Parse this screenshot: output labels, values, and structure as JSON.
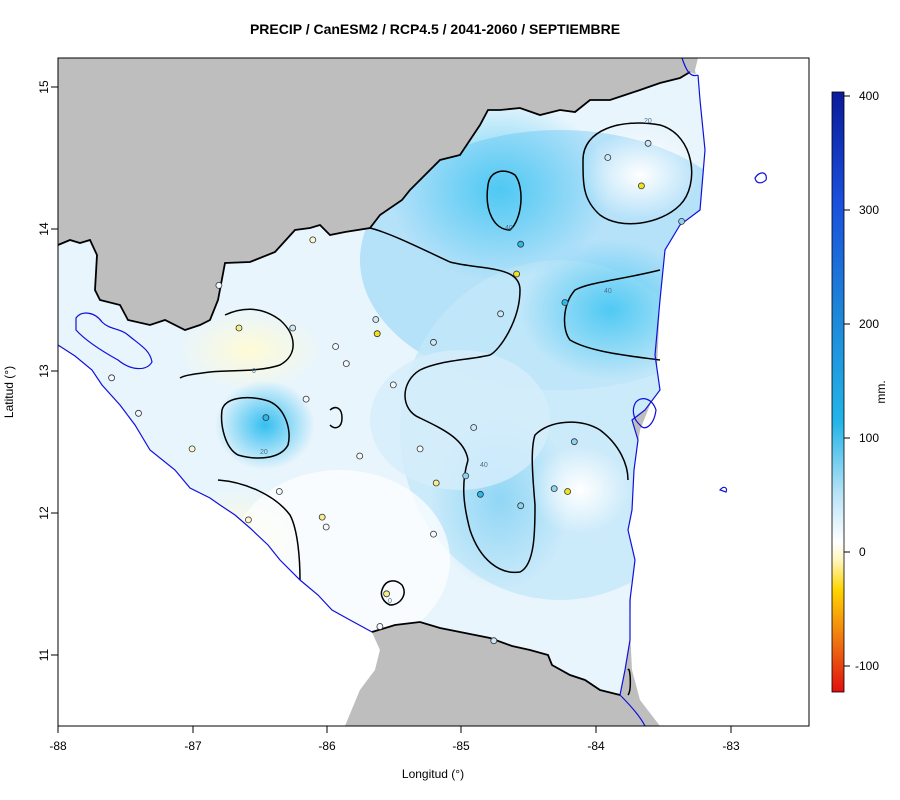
{
  "title": "PRECIP / CanESM2 / RCP4.5 / 2041-2060 / SEPTIEMBRE",
  "axes": {
    "xlabel": "Longitud (°)",
    "ylabel": "Latitud (°)",
    "xticks": [
      "-88",
      "-87",
      "-86",
      "-85",
      "-84",
      "-83"
    ],
    "yticks": [
      "15",
      "14",
      "13",
      "12",
      "11"
    ]
  },
  "colorbar": {
    "label": "mm.",
    "ticks": [
      "400",
      "300",
      "200",
      "100",
      "0",
      "-100"
    ],
    "stops": [
      "#e01010",
      "#f07a10",
      "#ffd400",
      "#fff6c0",
      "#ffffff",
      "#b9e3f7",
      "#23b4e8",
      "#1e86d9",
      "#1a4fdc",
      "#0a1a9a"
    ]
  },
  "contour_labels": [
    "20",
    "40",
    "40",
    "0",
    "20",
    "40",
    "0"
  ],
  "colors": {
    "land_outside": "#bebebe",
    "coast": "#1010dd",
    "contour": "#000000"
  },
  "chart_data": {
    "type": "heatmap",
    "title": "PRECIP / CanESM2 / RCP4.5 / 2041-2060 / SEPTIEMBRE",
    "xlabel": "Longitud (°)",
    "ylabel": "Latitud (°)",
    "xlim": [
      -88,
      -82.4
    ],
    "ylim": [
      10.5,
      15.2
    ],
    "zlim": [
      -120,
      405
    ],
    "unit": "mm.",
    "contour_levels": [
      0,
      20,
      40
    ],
    "stations": [
      {
        "lon": -86.45,
        "lat": 12.67,
        "value": 90
      },
      {
        "lon": -84.55,
        "lat": 13.89,
        "value": 90
      },
      {
        "lon": -84.85,
        "lat": 12.13,
        "value": 80
      },
      {
        "lon": -84.22,
        "lat": 13.48,
        "value": 60
      },
      {
        "lon": -84.3,
        "lat": 12.17,
        "value": 50
      },
      {
        "lon": -83.35,
        "lat": 14.05,
        "value": 45
      },
      {
        "lon": -84.96,
        "lat": 12.26,
        "value": 50
      },
      {
        "lon": -83.6,
        "lat": 14.6,
        "value": 20
      },
      {
        "lon": -85.63,
        "lat": 13.36,
        "value": 20
      },
      {
        "lon": -86.25,
        "lat": 13.3,
        "value": 15
      },
      {
        "lon": -85.93,
        "lat": 13.17,
        "value": 10
      },
      {
        "lon": -85.85,
        "lat": 13.05,
        "value": 5
      },
      {
        "lon": -85.75,
        "lat": 12.4,
        "value": 5
      },
      {
        "lon": -85.5,
        "lat": 12.9,
        "value": 10
      },
      {
        "lon": -86.15,
        "lat": 12.8,
        "value": 0
      },
      {
        "lon": -86.35,
        "lat": 12.15,
        "value": 10
      },
      {
        "lon": -86.0,
        "lat": 11.9,
        "value": 10
      },
      {
        "lon": -85.3,
        "lat": 12.45,
        "value": 10
      },
      {
        "lon": -84.9,
        "lat": 12.6,
        "value": 20
      },
      {
        "lon": -84.55,
        "lat": 12.05,
        "value": 30
      },
      {
        "lon": -85.2,
        "lat": 11.85,
        "value": 5
      },
      {
        "lon": -84.75,
        "lat": 11.1,
        "value": 15
      },
      {
        "lon": -85.6,
        "lat": 11.2,
        "value": 10
      },
      {
        "lon": -87.6,
        "lat": 12.95,
        "value": 0
      },
      {
        "lon": -87.4,
        "lat": 12.7,
        "value": 5
      },
      {
        "lon": -86.8,
        "lat": 13.6,
        "value": 5
      },
      {
        "lon": -85.2,
        "lat": 13.2,
        "value": 20
      },
      {
        "lon": -84.7,
        "lat": 13.4,
        "value": 25
      },
      {
        "lon": -83.9,
        "lat": 14.5,
        "value": 25
      },
      {
        "lon": -84.15,
        "lat": 12.5,
        "value": 30
      },
      {
        "lon": -86.65,
        "lat": 13.3,
        "value": -20
      },
      {
        "lon": -85.62,
        "lat": 13.26,
        "value": -40
      },
      {
        "lon": -83.65,
        "lat": 14.3,
        "value": -40
      },
      {
        "lon": -84.58,
        "lat": 13.68,
        "value": -40
      },
      {
        "lon": -84.2,
        "lat": 12.15,
        "value": -40
      },
      {
        "lon": -85.18,
        "lat": 12.21,
        "value": -20
      },
      {
        "lon": -85.55,
        "lat": 11.43,
        "value": -20
      },
      {
        "lon": -86.58,
        "lat": 11.95,
        "value": -10
      },
      {
        "lon": -87.0,
        "lat": 12.45,
        "value": -10
      },
      {
        "lon": -86.03,
        "lat": 11.97,
        "value": -15
      },
      {
        "lon": -86.1,
        "lat": 13.92,
        "value": -10
      }
    ]
  }
}
